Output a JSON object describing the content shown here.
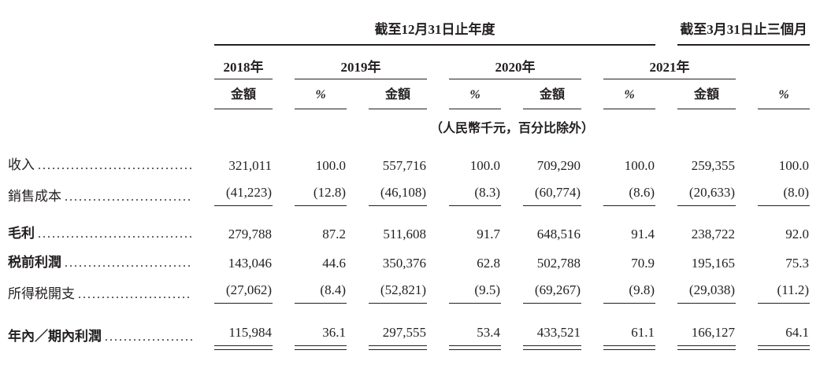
{
  "colors": {
    "ink": "#231f20",
    "background": "#ffffff"
  },
  "table": {
    "periods": [
      {
        "label": "截至12月31日止年度"
      },
      {
        "label": "截至3月31日止三個月"
      }
    ],
    "years": [
      "2018年",
      "2019年",
      "2020年",
      "2021年"
    ],
    "subheaders": {
      "amount": "金額",
      "percent": "%"
    },
    "unit_note": "（人民幣千元，百分比除外）",
    "dot_leader": "............................................................",
    "rows": [
      {
        "label": "收入",
        "bold": false,
        "underline": "none",
        "values": [
          "321,011",
          "100.0",
          "557,716",
          "100.0",
          "709,290",
          "100.0",
          "259,355",
          "100.0"
        ]
      },
      {
        "label": "銷售成本",
        "bold": false,
        "underline": "single",
        "values": [
          "(41,223)",
          "(12.8)",
          "(46,108)",
          "(8.3)",
          "(60,774)",
          "(8.6)",
          "(20,633)",
          "(8.0)"
        ]
      },
      {
        "label": "毛利",
        "bold": true,
        "underline": "none",
        "values": [
          "279,788",
          "87.2",
          "511,608",
          "91.7",
          "648,516",
          "91.4",
          "238,722",
          "92.0"
        ]
      },
      {
        "label": "税前利潤",
        "bold": true,
        "underline": "none",
        "values": [
          "143,046",
          "44.6",
          "350,376",
          "62.8",
          "502,788",
          "70.9",
          "195,165",
          "75.3"
        ]
      },
      {
        "label": "所得税開支",
        "bold": false,
        "underline": "single",
        "values": [
          "(27,062)",
          "(8.4)",
          "(52,821)",
          "(9.5)",
          "(69,267)",
          "(9.8)",
          "(29,038)",
          "(11.2)"
        ]
      },
      {
        "label": "年內／期內利潤",
        "bold": true,
        "underline": "double",
        "values": [
          "115,984",
          "36.1",
          "297,555",
          "53.4",
          "433,521",
          "61.1",
          "166,127",
          "64.1"
        ]
      }
    ]
  }
}
